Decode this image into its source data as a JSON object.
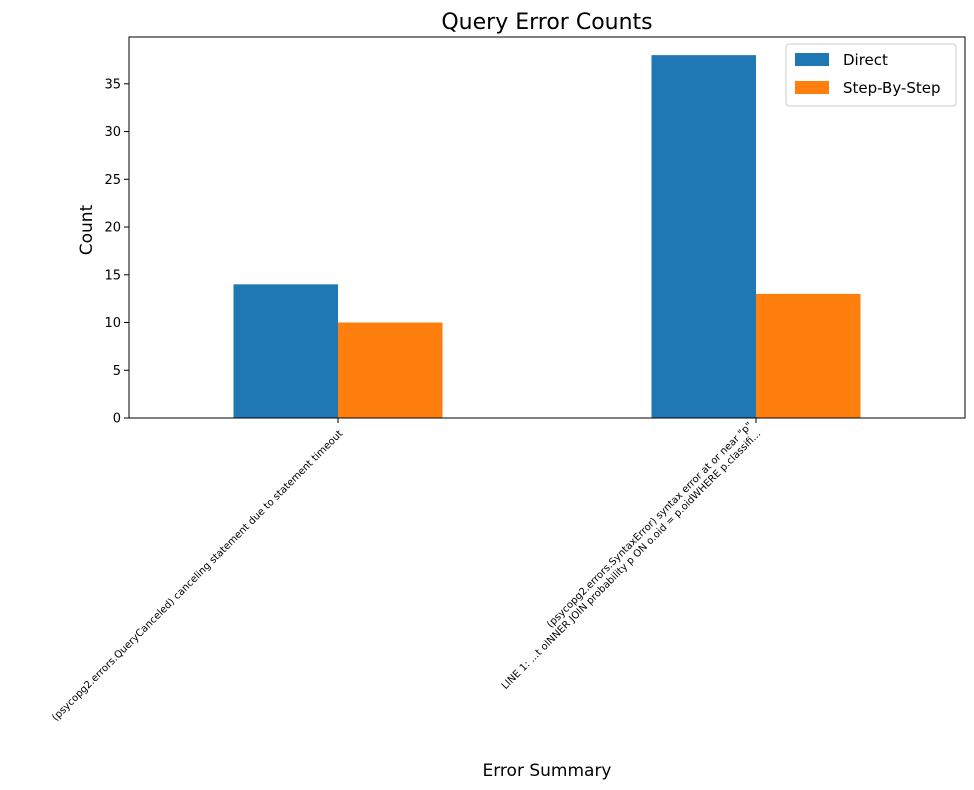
{
  "chart_data": {
    "type": "bar",
    "title": "Query Error Counts",
    "xlabel": "Error Summary",
    "ylabel": "Count",
    "categories": [
      [
        "(psycopg2.errors.QueryCanceled) canceling statement due to statement timeout"
      ],
      [
        "(psycopg2.errors.SyntaxError) syntax error at or near \"p\"",
        "LINE 1: ...t oINNER JOIN probability p ON o.oid = p.oidWHERE p.classifi..."
      ]
    ],
    "series": [
      {
        "name": "Direct",
        "values": [
          14,
          38
        ],
        "color": "#1f77b4"
      },
      {
        "name": "Step-By-Step",
        "values": [
          10,
          13
        ],
        "color": "#ff7f0e"
      }
    ],
    "ylim": [
      0,
      39.9
    ],
    "yticks": [
      0,
      5,
      10,
      15,
      20,
      25,
      30,
      35
    ],
    "grid": false,
    "legend_position": "top-right"
  }
}
